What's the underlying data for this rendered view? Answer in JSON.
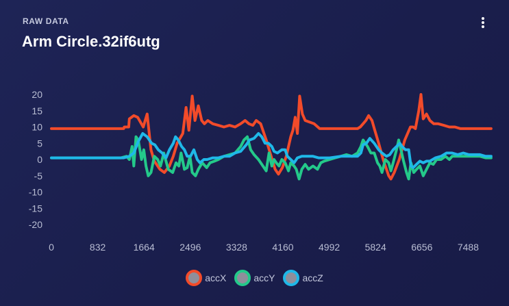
{
  "card": {
    "overline": "RAW DATA",
    "title": "Arm Circle.32if6utg",
    "menu_icon": "more-vertical-icon"
  },
  "chart_data": {
    "type": "line",
    "title": "",
    "xlabel": "",
    "ylabel": "",
    "xlim": [
      0,
      8000
    ],
    "ylim": [
      -20,
      20
    ],
    "x_ticks": [
      0,
      832,
      1664,
      2496,
      3328,
      4160,
      4992,
      5824,
      6656,
      7488
    ],
    "y_ticks": [
      20,
      15,
      10,
      5,
      0,
      -5,
      -10,
      -15,
      -20
    ],
    "grid": false,
    "legend": "bottom-center",
    "series": [
      {
        "name": "accX",
        "color": "#f24b2a",
        "points": [
          [
            0,
            9.5
          ],
          [
            800,
            9.5
          ],
          [
            1300,
            9.5
          ],
          [
            1310,
            10
          ],
          [
            1390,
            10
          ],
          [
            1400,
            12.5
          ],
          [
            1480,
            13.5
          ],
          [
            1550,
            13
          ],
          [
            1650,
            10
          ],
          [
            1720,
            14
          ],
          [
            1790,
            3
          ],
          [
            1850,
            -0.5
          ],
          [
            1950,
            -3
          ],
          [
            2030,
            -4
          ],
          [
            2120,
            -2
          ],
          [
            2190,
            1
          ],
          [
            2260,
            5
          ],
          [
            2360,
            8
          ],
          [
            2420,
            16
          ],
          [
            2470,
            9
          ],
          [
            2530,
            19.5
          ],
          [
            2580,
            12
          ],
          [
            2640,
            16.5
          ],
          [
            2700,
            12
          ],
          [
            2750,
            11
          ],
          [
            2810,
            12
          ],
          [
            2900,
            11
          ],
          [
            3000,
            10.5
          ],
          [
            3100,
            10
          ],
          [
            3200,
            10.5
          ],
          [
            3300,
            10
          ],
          [
            3400,
            11
          ],
          [
            3480,
            12
          ],
          [
            3550,
            11
          ],
          [
            3620,
            10.5
          ],
          [
            3680,
            12
          ],
          [
            3760,
            11
          ],
          [
            3860,
            6
          ],
          [
            3940,
            1.5
          ],
          [
            4020,
            -3
          ],
          [
            4080,
            -4.5
          ],
          [
            4150,
            -2.5
          ],
          [
            4220,
            1
          ],
          [
            4300,
            7
          ],
          [
            4340,
            9
          ],
          [
            4380,
            13
          ],
          [
            4420,
            8
          ],
          [
            4460,
            19.5
          ],
          [
            4510,
            14
          ],
          [
            4560,
            12
          ],
          [
            4640,
            11.5
          ],
          [
            4720,
            11
          ],
          [
            4820,
            9.5
          ],
          [
            4950,
            9.5
          ],
          [
            5100,
            9.5
          ],
          [
            5300,
            9.5
          ],
          [
            5400,
            9.5
          ],
          [
            5500,
            9.5
          ],
          [
            5550,
            10
          ],
          [
            5600,
            11
          ],
          [
            5650,
            12
          ],
          [
            5700,
            13.5
          ],
          [
            5760,
            12
          ],
          [
            5810,
            9
          ],
          [
            5880,
            5
          ],
          [
            5960,
            0
          ],
          [
            6060,
            -5
          ],
          [
            6100,
            -6
          ],
          [
            6160,
            -4
          ],
          [
            6250,
            0
          ],
          [
            6350,
            6
          ],
          [
            6400,
            8
          ],
          [
            6450,
            10
          ],
          [
            6500,
            10
          ],
          [
            6540,
            9.5
          ],
          [
            6600,
            15
          ],
          [
            6640,
            20
          ],
          [
            6680,
            12.5
          ],
          [
            6740,
            14
          ],
          [
            6800,
            12
          ],
          [
            6870,
            11
          ],
          [
            6950,
            11
          ],
          [
            7050,
            10.5
          ],
          [
            7150,
            10
          ],
          [
            7250,
            10
          ],
          [
            7350,
            9.5
          ],
          [
            7500,
            9.5
          ],
          [
            7650,
            9.5
          ],
          [
            7800,
            9.5
          ],
          [
            7900,
            9.5
          ]
        ]
      },
      {
        "name": "accY",
        "color": "#24c98a",
        "points": [
          [
            0,
            0.5
          ],
          [
            800,
            0.5
          ],
          [
            1250,
            0.5
          ],
          [
            1350,
            1
          ],
          [
            1400,
            0
          ],
          [
            1450,
            4
          ],
          [
            1480,
            -2
          ],
          [
            1520,
            7
          ],
          [
            1560,
            6
          ],
          [
            1620,
            0
          ],
          [
            1660,
            3
          ],
          [
            1700,
            -2
          ],
          [
            1740,
            -5
          ],
          [
            1790,
            -4
          ],
          [
            1850,
            1
          ],
          [
            1910,
            0
          ],
          [
            1960,
            -2
          ],
          [
            2020,
            2
          ],
          [
            2100,
            -3
          ],
          [
            2180,
            -4
          ],
          [
            2240,
            -1
          ],
          [
            2290,
            -2
          ],
          [
            2330,
            2
          ],
          [
            2390,
            -3
          ],
          [
            2440,
            -2.5
          ],
          [
            2490,
            1
          ],
          [
            2530,
            -4
          ],
          [
            2590,
            -5
          ],
          [
            2640,
            -3
          ],
          [
            2710,
            -1
          ],
          [
            2790,
            -2.5
          ],
          [
            2850,
            -1
          ],
          [
            2930,
            -0.5
          ],
          [
            3000,
            0
          ],
          [
            3100,
            1
          ],
          [
            3200,
            1.5
          ],
          [
            3300,
            2
          ],
          [
            3400,
            4
          ],
          [
            3460,
            6
          ],
          [
            3520,
            7
          ],
          [
            3580,
            3
          ],
          [
            3640,
            1.5
          ],
          [
            3720,
            0
          ],
          [
            3800,
            -2
          ],
          [
            3860,
            -3.5
          ],
          [
            3910,
            2
          ],
          [
            3960,
            -2
          ],
          [
            4000,
            0
          ],
          [
            4040,
            -1
          ],
          [
            4090,
            -2
          ],
          [
            4140,
            0
          ],
          [
            4200,
            -1
          ],
          [
            4260,
            -3.5
          ],
          [
            4300,
            -1
          ],
          [
            4360,
            -2
          ],
          [
            4400,
            -3
          ],
          [
            4450,
            -6
          ],
          [
            4500,
            -3
          ],
          [
            4560,
            -1.5
          ],
          [
            4620,
            -3
          ],
          [
            4700,
            -2
          ],
          [
            4780,
            -3
          ],
          [
            4840,
            -1
          ],
          [
            4900,
            -0.5
          ],
          [
            5000,
            0
          ],
          [
            5100,
            0.5
          ],
          [
            5200,
            1
          ],
          [
            5300,
            1.5
          ],
          [
            5400,
            1
          ],
          [
            5500,
            2
          ],
          [
            5560,
            4
          ],
          [
            5600,
            6
          ],
          [
            5680,
            4
          ],
          [
            5740,
            2
          ],
          [
            5800,
            2
          ],
          [
            5860,
            -1
          ],
          [
            5900,
            -2
          ],
          [
            5940,
            -4
          ],
          [
            6000,
            0
          ],
          [
            6060,
            -1
          ],
          [
            6100,
            -3.5
          ],
          [
            6140,
            -1
          ],
          [
            6200,
            3
          ],
          [
            6240,
            6
          ],
          [
            6280,
            3
          ],
          [
            6320,
            0
          ],
          [
            6380,
            -4
          ],
          [
            6420,
            -6
          ],
          [
            6460,
            -1
          ],
          [
            6510,
            -4
          ],
          [
            6560,
            -3
          ],
          [
            6620,
            -2
          ],
          [
            6680,
            -5
          ],
          [
            6740,
            -3
          ],
          [
            6800,
            -1
          ],
          [
            6860,
            -1.5
          ],
          [
            6920,
            0
          ],
          [
            7000,
            0
          ],
          [
            7080,
            1
          ],
          [
            7150,
            0
          ],
          [
            7200,
            1
          ],
          [
            7300,
            1
          ],
          [
            7400,
            1
          ],
          [
            7500,
            1
          ],
          [
            7600,
            1
          ],
          [
            7700,
            1
          ],
          [
            7800,
            0.5
          ],
          [
            7900,
            0.5
          ]
        ]
      },
      {
        "name": "accZ",
        "color": "#1fb8e8",
        "points": [
          [
            0,
            0.5
          ],
          [
            1300,
            0.5
          ],
          [
            1400,
            1
          ],
          [
            1480,
            2
          ],
          [
            1560,
            5.5
          ],
          [
            1640,
            8
          ],
          [
            1720,
            7
          ],
          [
            1800,
            5
          ],
          [
            1860,
            4.5
          ],
          [
            1920,
            3
          ],
          [
            1990,
            2
          ],
          [
            2060,
            0.5
          ],
          [
            2120,
            3
          ],
          [
            2190,
            5
          ],
          [
            2230,
            7
          ],
          [
            2280,
            6
          ],
          [
            2340,
            4
          ],
          [
            2390,
            3
          ],
          [
            2440,
            1
          ],
          [
            2500,
            1
          ],
          [
            2560,
            3
          ],
          [
            2620,
            0
          ],
          [
            2670,
            -1
          ],
          [
            2740,
            0
          ],
          [
            2800,
            0
          ],
          [
            2900,
            0.5
          ],
          [
            3000,
            0.5
          ],
          [
            3100,
            1
          ],
          [
            3200,
            1
          ],
          [
            3300,
            2
          ],
          [
            3400,
            2.5
          ],
          [
            3500,
            4.5
          ],
          [
            3560,
            6
          ],
          [
            3640,
            6.5
          ],
          [
            3720,
            8
          ],
          [
            3780,
            7
          ],
          [
            3840,
            5
          ],
          [
            3900,
            5
          ],
          [
            3960,
            4
          ],
          [
            4000,
            2.5
          ],
          [
            4060,
            2
          ],
          [
            4140,
            3
          ],
          [
            4200,
            3
          ],
          [
            4240,
            1
          ],
          [
            4300,
            0
          ],
          [
            4360,
            -1
          ],
          [
            4420,
            0.5
          ],
          [
            4500,
            1
          ],
          [
            4600,
            1
          ],
          [
            4700,
            1
          ],
          [
            4800,
            0.5
          ],
          [
            5000,
            0.5
          ],
          [
            5200,
            1
          ],
          [
            5400,
            1
          ],
          [
            5500,
            1
          ],
          [
            5560,
            2
          ],
          [
            5600,
            4.5
          ],
          [
            5660,
            5
          ],
          [
            5720,
            6.5
          ],
          [
            5800,
            5
          ],
          [
            5880,
            3
          ],
          [
            5940,
            2
          ],
          [
            6020,
            1
          ],
          [
            6080,
            1.5
          ],
          [
            6140,
            3
          ],
          [
            6200,
            4
          ],
          [
            6260,
            5
          ],
          [
            6300,
            4
          ],
          [
            6360,
            3
          ],
          [
            6420,
            3
          ],
          [
            6460,
            -2
          ],
          [
            6500,
            -2.5
          ],
          [
            6560,
            -1.5
          ],
          [
            6620,
            -0.5
          ],
          [
            6680,
            -1
          ],
          [
            6740,
            -0.5
          ],
          [
            6800,
            -0.5
          ],
          [
            6900,
            0.5
          ],
          [
            7000,
            1
          ],
          [
            7100,
            2
          ],
          [
            7200,
            2
          ],
          [
            7300,
            1.5
          ],
          [
            7400,
            2
          ],
          [
            7500,
            1.5
          ],
          [
            7600,
            1.5
          ],
          [
            7700,
            1.5
          ],
          [
            7800,
            1
          ],
          [
            7900,
            1
          ]
        ]
      }
    ]
  }
}
